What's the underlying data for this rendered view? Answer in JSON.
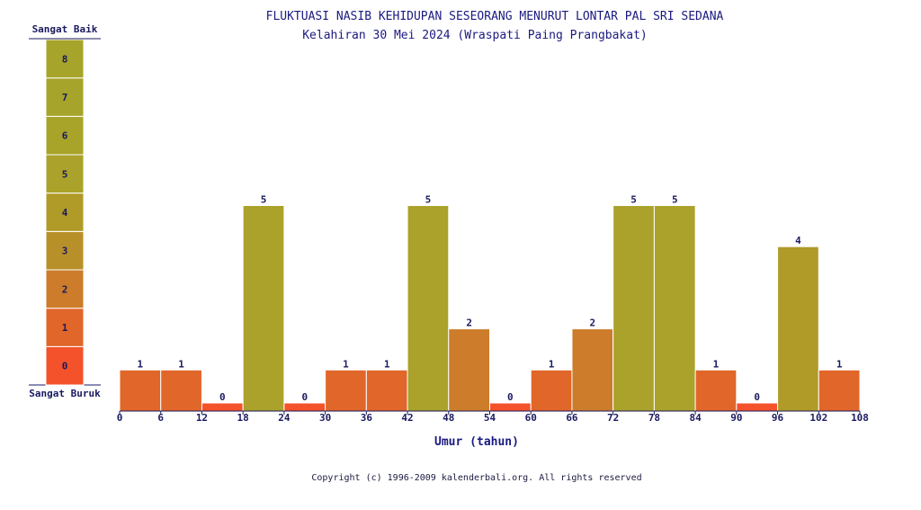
{
  "chart_data": {
    "type": "bar",
    "title": "FLUKTUASI NASIB KEHIDUPAN SESEORANG MENURUT LONTAR PAL SRI SEDANA",
    "subtitle": "Kelahiran 30 Mei 2024 (Wraspati Paing Prangbakat)",
    "xlabel": "Umur (tahun)",
    "x_ticks": [
      "0",
      "6",
      "12",
      "18",
      "24",
      "30",
      "36",
      "42",
      "48",
      "54",
      "60",
      "66",
      "72",
      "78",
      "84",
      "90",
      "96",
      "102",
      "108"
    ],
    "xlim": [
      0,
      108
    ],
    "ylim": [
      0,
      8
    ],
    "bin_width": 6,
    "bins_start": [
      0,
      6,
      12,
      18,
      24,
      30,
      36,
      42,
      48,
      54,
      60,
      66,
      72,
      78,
      84,
      90,
      96,
      102
    ],
    "values": [
      1,
      1,
      0,
      5,
      0,
      1,
      1,
      5,
      2,
      0,
      1,
      2,
      5,
      5,
      1,
      0,
      4,
      1
    ],
    "scale": {
      "top_label": "Sangat Baik",
      "bottom_label": "Sangat Buruk",
      "levels": [
        "0",
        "1",
        "2",
        "3",
        "4",
        "5",
        "6",
        "7",
        "8"
      ]
    },
    "level_colors": [
      "#f4522a",
      "#e0662a",
      "#cc7c2a",
      "#b8902a",
      "#b09a28",
      "#aaa22a",
      "#a8a42a",
      "#a6a42a",
      "#a6a42a"
    ],
    "grid": false
  },
  "copyright": "Copyright (c) 1996-2009 kalenderbali.org. All rights reserved"
}
